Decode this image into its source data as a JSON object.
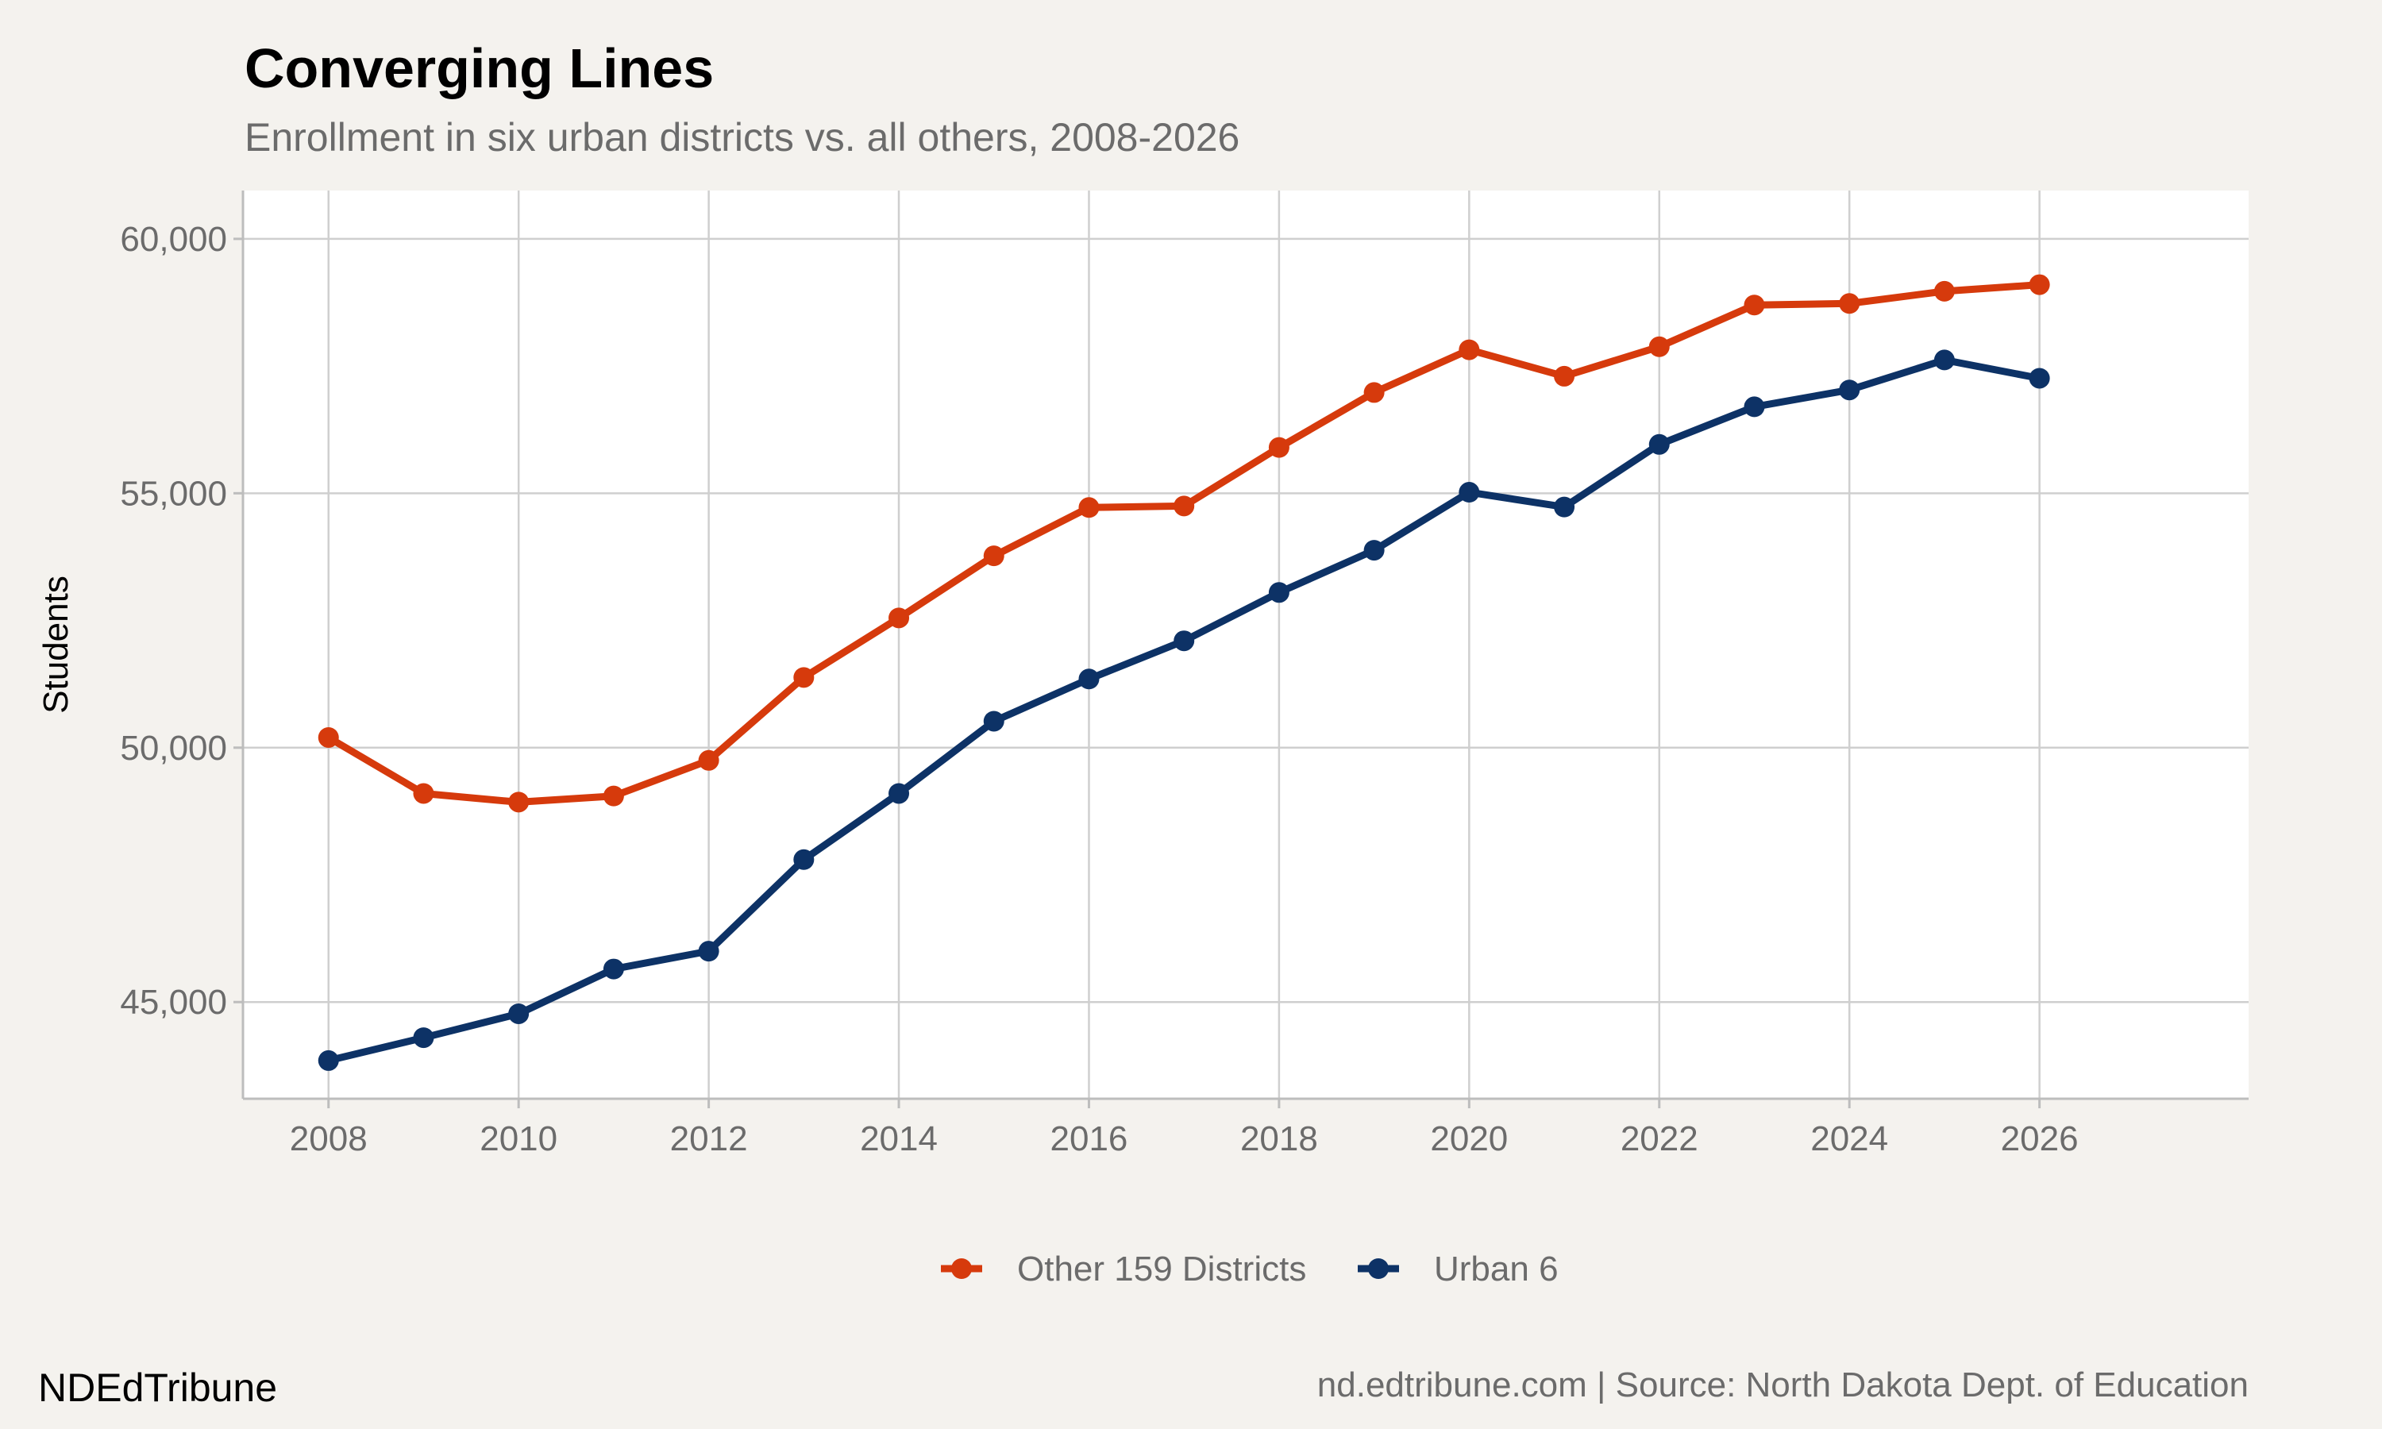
{
  "chart_data": {
    "type": "line",
    "title": "Converging Lines",
    "subtitle": "Enrollment in six urban districts vs. all others, 2008-2026",
    "xlabel": "",
    "ylabel": "Students",
    "x": [
      2008,
      2009,
      2010,
      2011,
      2012,
      2013,
      2014,
      2015,
      2016,
      2017,
      2018,
      2019,
      2020,
      2021,
      2022,
      2023,
      2024,
      2025,
      2026
    ],
    "xlim": [
      2007.1,
      2028.2
    ],
    "ylim": [
      43100,
      60950
    ],
    "x_ticks": [
      2008,
      2010,
      2012,
      2014,
      2016,
      2018,
      2020,
      2022,
      2024,
      2026
    ],
    "x_tick_labels": [
      "2008",
      "2010",
      "2012",
      "2014",
      "2016",
      "2018",
      "2020",
      "2022",
      "2024",
      "2026"
    ],
    "y_ticks": [
      45000,
      50000,
      55000,
      60000
    ],
    "y_tick_labels": [
      "45,000",
      "50,000",
      "55,000",
      "60,000"
    ],
    "grid": true,
    "legend_position": "bottom",
    "series": [
      {
        "name": "Other 159 Districts",
        "color": "#d63a0c",
        "values": [
          50200,
          49100,
          48930,
          49050,
          49750,
          51380,
          52550,
          53770,
          54720,
          54750,
          55900,
          56980,
          57820,
          57300,
          57880,
          58700,
          58730,
          58970,
          59100
        ]
      },
      {
        "name": "Urban 6",
        "color": "#0d3266",
        "values": [
          43850,
          44300,
          44770,
          45650,
          46000,
          47800,
          49100,
          50520,
          51350,
          52100,
          53050,
          53880,
          55020,
          54730,
          55960,
          56700,
          57030,
          57620,
          57260
        ]
      }
    ],
    "brand": "NDEdTribune",
    "caption": "nd.edtribune.com | Source: North Dakota Dept. of Education"
  }
}
